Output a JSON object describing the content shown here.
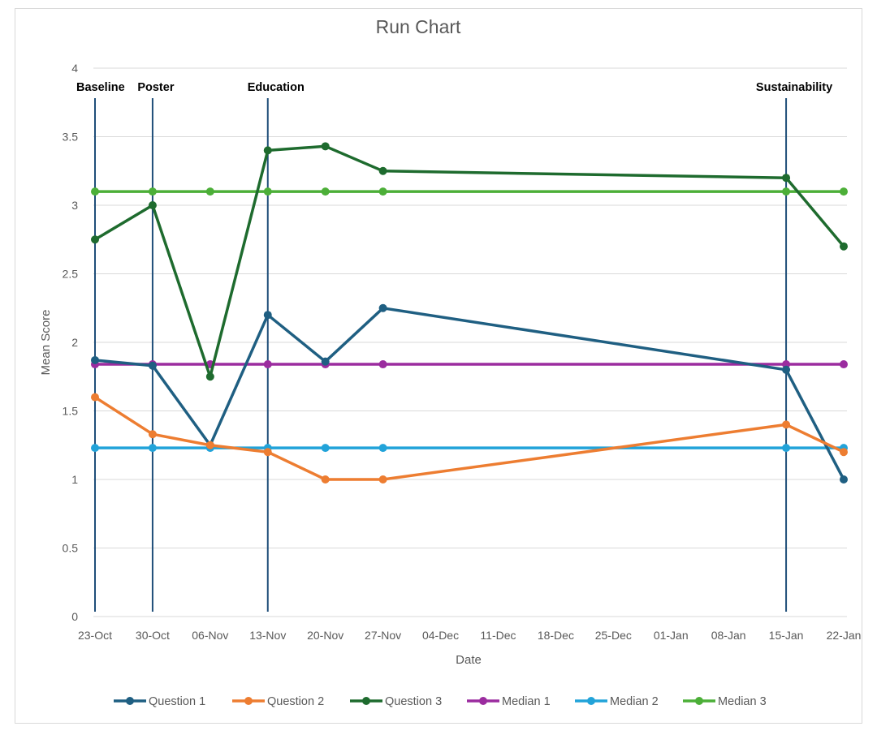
{
  "chart_data": {
    "type": "line",
    "title": "Run Chart",
    "xlabel": "Date",
    "ylabel": "Mean Score",
    "ylim": [
      0,
      4
    ],
    "yticks": [
      "0",
      "0.5",
      "1",
      "1.5",
      "2",
      "2.5",
      "3",
      "3.5",
      "4"
    ],
    "categories": [
      "23-Oct",
      "30-Oct",
      "06-Nov",
      "13-Nov",
      "20-Nov",
      "27-Nov",
      "04-Dec",
      "11-Dec",
      "18-Dec",
      "25-Dec",
      "01-Jan",
      "08-Jan",
      "15-Jan",
      "22-Jan"
    ],
    "grid": "horizontal",
    "legend_position": "bottom",
    "series": [
      {
        "name": "Question 1",
        "color": "#1f5f82",
        "values": [
          1.87,
          1.83,
          1.25,
          2.2,
          1.86,
          2.25,
          null,
          null,
          null,
          null,
          null,
          null,
          1.8,
          1.0
        ]
      },
      {
        "name": "Question 2",
        "color": "#ed7d31",
        "values": [
          1.6,
          1.33,
          1.25,
          1.2,
          1.0,
          1.0,
          null,
          null,
          null,
          null,
          null,
          null,
          1.4,
          1.2
        ]
      },
      {
        "name": "Question 3",
        "color": "#1e6b2e",
        "values": [
          2.75,
          3.0,
          1.75,
          3.4,
          3.43,
          3.25,
          null,
          null,
          null,
          null,
          null,
          null,
          3.2,
          2.7
        ]
      },
      {
        "name": "Median 1",
        "color": "#9b2c9f",
        "values": [
          1.84,
          1.84,
          1.84,
          1.84,
          1.84,
          1.84,
          null,
          null,
          null,
          null,
          null,
          null,
          1.84,
          1.84
        ]
      },
      {
        "name": "Median 2",
        "color": "#22a3d9",
        "values": [
          1.23,
          1.23,
          1.23,
          1.23,
          1.23,
          1.23,
          null,
          null,
          null,
          null,
          null,
          null,
          1.23,
          1.23
        ]
      },
      {
        "name": "Median 3",
        "color": "#4caf38",
        "values": [
          3.1,
          3.1,
          3.1,
          3.1,
          3.1,
          3.1,
          null,
          null,
          null,
          null,
          null,
          null,
          3.1,
          3.1
        ]
      }
    ],
    "annotations": [
      {
        "label": "Baseline",
        "x": "23-Oct"
      },
      {
        "label": "Poster",
        "x": "30-Oct"
      },
      {
        "label": "Education",
        "x": "13-Nov"
      },
      {
        "label": "Sustainability",
        "x": "15-Jan"
      }
    ],
    "annotation_line_color": "#1f4e79",
    "grid_color": "#d9d9d9"
  }
}
